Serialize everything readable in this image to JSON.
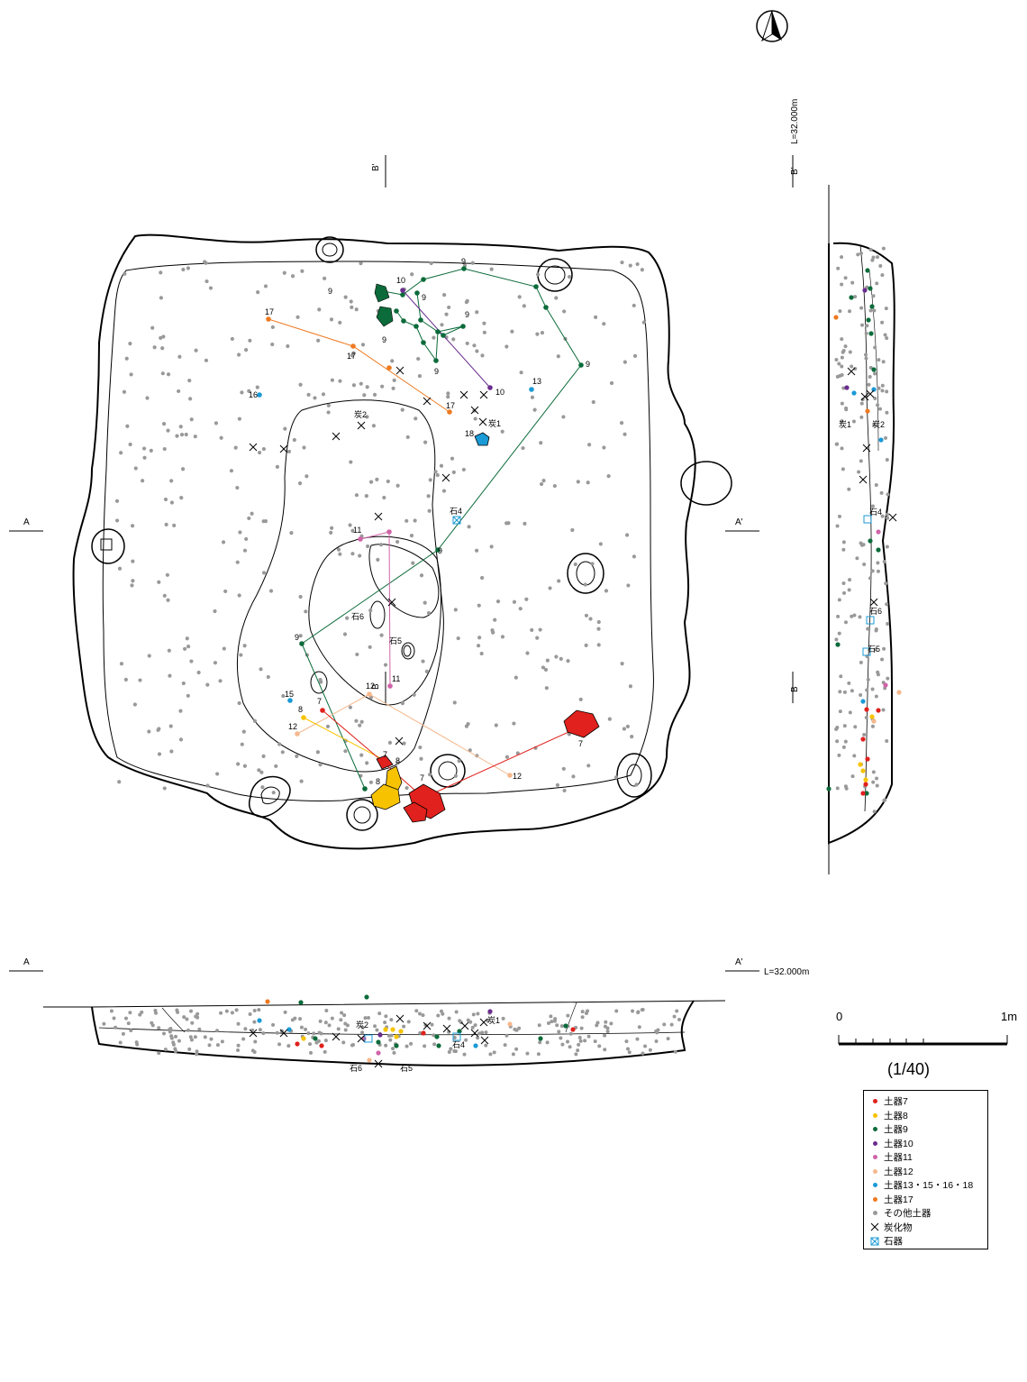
{
  "sections": {
    "a_left": "A",
    "a_right": "A'",
    "b_bottom": "B",
    "b_top": "B'",
    "a_profile_left": "A",
    "a_profile_right": "A'",
    "a_level": "L=32.000m",
    "b_level": "L=32.000m",
    "b_profile_top": "B'",
    "b_profile_bottom": "B"
  },
  "plan_labels": {
    "pot9_a": "9",
    "pot9_b": "9",
    "pot9_c": "9",
    "pot9_d": "9",
    "pot9_e": "9",
    "pot9_f": "9",
    "pot9_g": "9",
    "pot9_h": "9",
    "pot9_i": "9",
    "pot10_a": "10",
    "pot10_b": "10",
    "pot17_a": "17",
    "pot17_b": "17",
    "pot17_c": "17",
    "pot16": "16",
    "pot13": "13",
    "pot18": "18",
    "pot15": "15",
    "char1": "炭1",
    "char2": "炭2",
    "stone4": "石4",
    "stone5": "石5",
    "stone6": "石6",
    "pot11_a": "11",
    "pot11_b": "11",
    "pot12_a": "12",
    "pot12_b": "12",
    "pot12_c": "12",
    "pot8_a": "8",
    "pot8_b": "8",
    "pot8_c": "8",
    "pot7_a": "7",
    "pot7_b": "7",
    "pot7_c": "7",
    "pot7_d": "7"
  },
  "b_profile_labels": {
    "char1": "炭1",
    "char2": "炭2",
    "stone4": "石4",
    "stone6": "石6",
    "stone5": "石5"
  },
  "a_profile_labels": {
    "char2": "炭2",
    "char1": "炭1",
    "stone4": "石4",
    "stone6": "石6",
    "stone5": "石5"
  },
  "legend": [
    {
      "label": "土器7",
      "color": "#e0211d",
      "symbol": "dot"
    },
    {
      "label": "土器8",
      "color": "#f7c300",
      "symbol": "dot"
    },
    {
      "label": "土器9",
      "color": "#0b6b3a",
      "symbol": "dot"
    },
    {
      "label": "土器10",
      "color": "#6a2d8f",
      "symbol": "dot"
    },
    {
      "label": "土器11",
      "color": "#d064a8",
      "symbol": "dot"
    },
    {
      "label": "土器12",
      "color": "#f5b88d",
      "symbol": "dot"
    },
    {
      "label": "土器13・15・16・18",
      "color": "#1a9ad6",
      "symbol": "dot"
    },
    {
      "label": "土器17",
      "color": "#ef7a21",
      "symbol": "dot"
    },
    {
      "label": "その他土器",
      "color": "#999999",
      "symbol": "dot"
    },
    {
      "label": "炭化物",
      "color": "#000000",
      "symbol": "cross"
    },
    {
      "label": "石器",
      "color": "#1a9ad6",
      "symbol": "box"
    }
  ],
  "scale": {
    "zero": "0",
    "one": "1m",
    "ratio": "(1/40)"
  },
  "north": "north-arrow-icon",
  "colors": {
    "pot7": "#e0211d",
    "pot8": "#f7c300",
    "pot9": "#0b6b3a",
    "pot10": "#6a2d8f",
    "pot11": "#d064a8",
    "pot12": "#f5b88d",
    "pot13": "#1a9ad6",
    "pot17": "#ef7a21",
    "other": "#999999"
  }
}
